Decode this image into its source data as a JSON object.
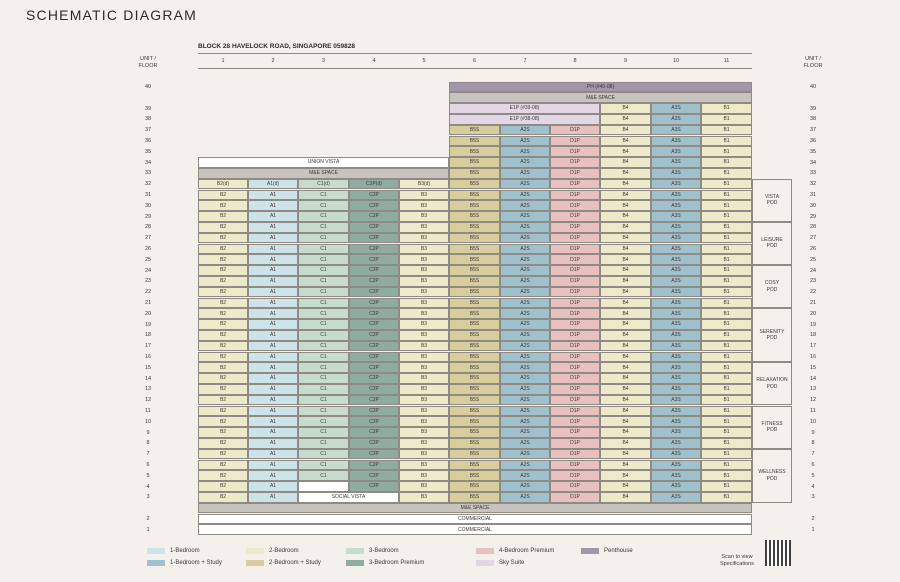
{
  "title": "SCHEMATIC DIAGRAM",
  "block": "BLOCK 28 HAVELOCK ROAD, SINGAPORE 059828",
  "unit_floor_label": "UNIT / FLOOR",
  "stacks": [
    "1",
    "2",
    "3",
    "4",
    "5",
    "6",
    "7",
    "8",
    "9",
    "10",
    "11"
  ],
  "colors": {
    "one_bed": "#cde3ea",
    "one_bed_study": "#9fc1cd",
    "two_bed": "#eceac9",
    "two_bed_study": "#d8cd9c",
    "three_bed": "#c8dccd",
    "three_bed_premium": "#8eaca0",
    "four_bed_premium": "#e8c0c0",
    "sky_suite": "#e3d7e6",
    "penthouse": "#a296ac",
    "service": "#c7c3bf",
    "blank": "#ffffff"
  },
  "left_units": [
    "B2",
    "A1",
    "C1",
    "C2P",
    "B3"
  ],
  "left_units_32": [
    "B2(d)",
    "A1(d)",
    "C1(d)",
    "C2P(d)",
    "B3(d)"
  ],
  "right_units": [
    "B5S",
    "A2S",
    "D1P",
    "B4",
    "A3S",
    "B1"
  ],
  "labels": {
    "ph": "PH (#40-08)",
    "me": "M&E SPACE",
    "e1p39": "E1P (#39-08)",
    "e1p38": "E1P (#38-08)",
    "union_vista": "UNION VISTA",
    "social_vista": "SOCIAL VISTA",
    "commercial": "COMMERCIAL"
  },
  "pods": [
    {
      "name": [
        "VISTA",
        "POD"
      ],
      "from": 29,
      "to": 32
    },
    {
      "name": [
        "LEISURE",
        "POD"
      ],
      "from": 25,
      "to": 28
    },
    {
      "name": [
        "COSY",
        "POD"
      ],
      "from": 21,
      "to": 24
    },
    {
      "name": [
        "SERENITY",
        "POD"
      ],
      "from": 16,
      "to": 20
    },
    {
      "name": [
        "RELAXATION",
        "POD"
      ],
      "from": 12,
      "to": 15
    },
    {
      "name": [
        "FITNESS",
        "POD"
      ],
      "from": 8,
      "to": 11
    },
    {
      "name": [
        "WELLNESS",
        "POD"
      ],
      "from": 3,
      "to": 7
    }
  ],
  "legend": [
    {
      "label": "1-Bedroom",
      "color": "#cde3ea"
    },
    {
      "label": "1-Bedroom + Study",
      "color": "#9fc1cd"
    },
    {
      "label": "2-Bedroom",
      "color": "#eceac9"
    },
    {
      "label": "2-Bedroom + Study",
      "color": "#d8cd9c"
    },
    {
      "label": "3-Bedroom",
      "color": "#c8dccd"
    },
    {
      "label": "3-Bedroom Premium",
      "color": "#8eaca0"
    },
    {
      "label": "4-Bedroom Premium",
      "color": "#e8c0c0"
    },
    {
      "label": "Sky Suite",
      "color": "#e3d7e6"
    },
    {
      "label": "Penthouse",
      "color": "#a296ac"
    }
  ],
  "scan_text": [
    "Scan to view",
    "Specifications"
  ]
}
